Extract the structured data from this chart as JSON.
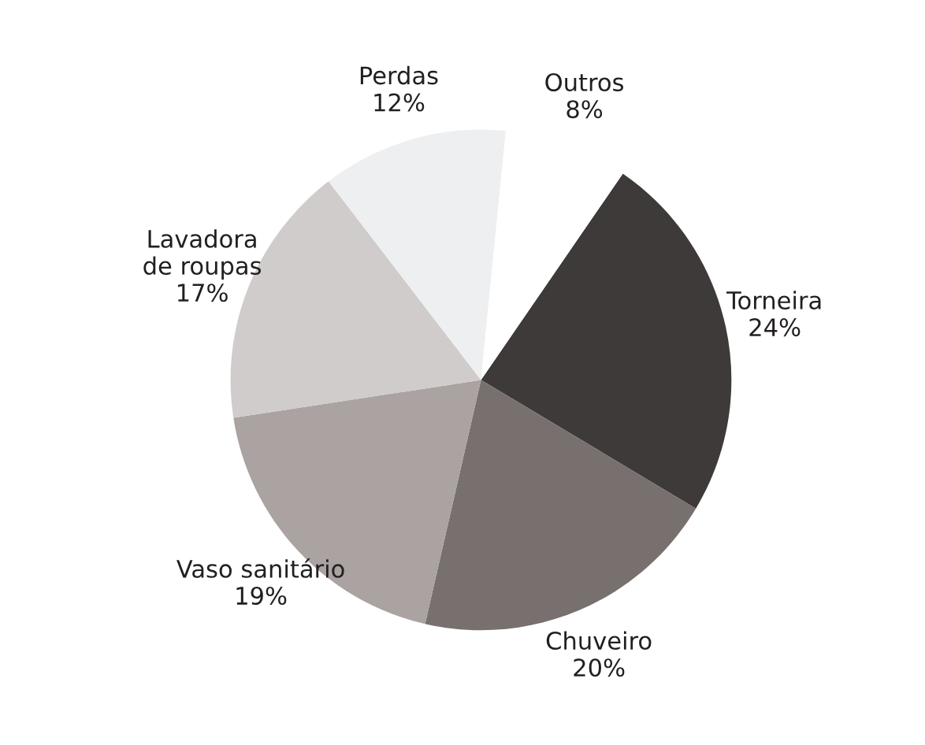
{
  "chart_data": {
    "type": "pie",
    "categories": [
      "Torneira",
      "Chuveiro",
      "Vaso sanitário",
      "Lavadora\nde roupas",
      "Perdas",
      "Outros"
    ],
    "values": [
      24,
      20,
      19,
      17,
      12,
      8
    ],
    "value_labels": [
      "24%",
      "20%",
      "19%",
      "17%",
      "12%",
      "8%"
    ],
    "colors": [
      "#3d3a39",
      "#77706e",
      "#aaa3a1",
      "#cfcccb",
      "#eeeff0",
      "#ffffff"
    ],
    "legend": false
  }
}
